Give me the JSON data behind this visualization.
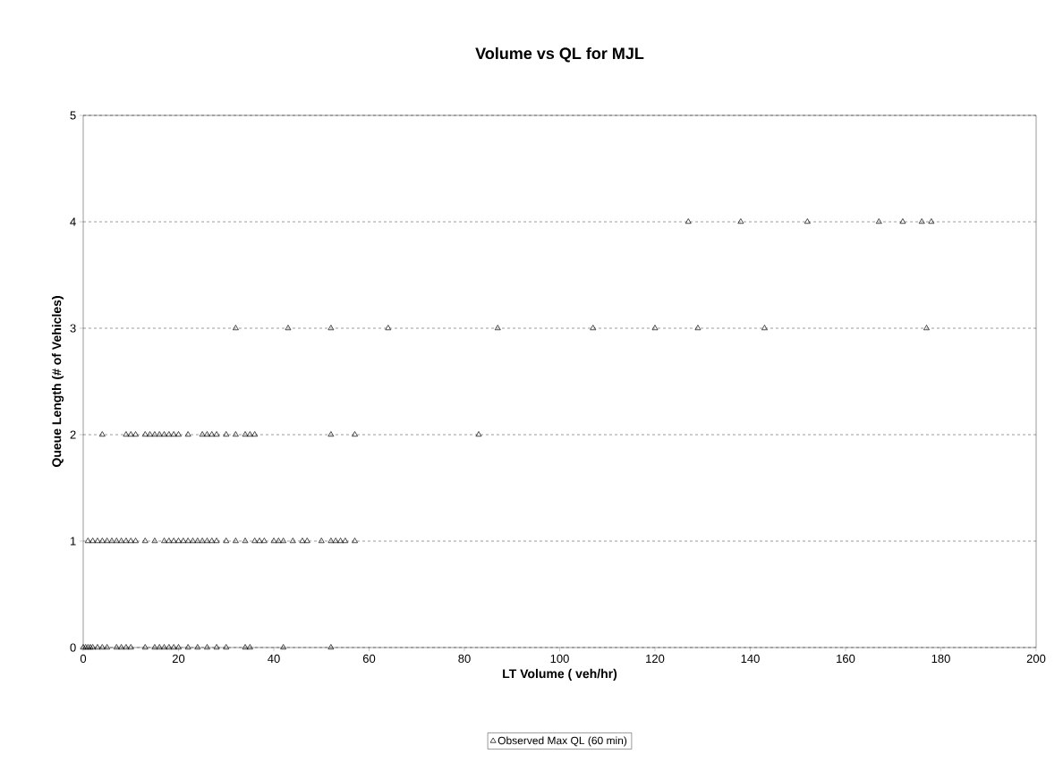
{
  "chart_data": {
    "type": "scatter",
    "title": "Volume vs QL for MJL",
    "xlabel": "LT Volume ( veh/hr)",
    "ylabel": "Queue Length (# of Vehicles)",
    "xlim": [
      0,
      200
    ],
    "xticks": [
      0,
      20,
      40,
      60,
      80,
      100,
      120,
      140,
      160,
      180,
      200
    ],
    "ylim": [
      0,
      5
    ],
    "yticks": [
      0,
      1,
      2,
      3,
      4,
      5
    ],
    "grid": "y",
    "legend": "bottom",
    "marker": "triangle",
    "series": [
      {
        "name": "Observed Max QL (60 min)",
        "color": "#000000",
        "x": [
          0,
          0.5,
          1,
          1.5,
          2,
          3,
          4,
          5,
          7,
          8,
          9,
          10,
          13,
          15,
          16,
          17,
          18,
          19,
          20,
          22,
          24,
          26,
          28,
          30,
          34,
          35,
          42,
          52,
          1,
          2,
          3,
          4,
          5,
          6,
          7,
          8,
          9,
          10,
          11,
          13,
          15,
          17,
          18,
          19,
          20,
          21,
          22,
          23,
          24,
          25,
          26,
          27,
          28,
          30,
          32,
          34,
          36,
          37,
          38,
          40,
          41,
          42,
          44,
          46,
          47,
          50,
          52,
          53,
          54,
          55,
          57,
          4,
          9,
          10,
          11,
          13,
          14,
          15,
          16,
          17,
          18,
          19,
          20,
          22,
          25,
          26,
          27,
          28,
          30,
          32,
          34,
          35,
          36,
          52,
          57,
          83,
          32,
          43,
          52,
          64,
          87,
          107,
          120,
          129,
          143,
          177,
          127,
          138,
          152,
          167,
          172,
          176,
          178
        ],
        "values": [
          0,
          0,
          0,
          0,
          0,
          0,
          0,
          0,
          0,
          0,
          0,
          0,
          0,
          0,
          0,
          0,
          0,
          0,
          0,
          0,
          0,
          0,
          0,
          0,
          0,
          0,
          0,
          0,
          1,
          1,
          1,
          1,
          1,
          1,
          1,
          1,
          1,
          1,
          1,
          1,
          1,
          1,
          1,
          1,
          1,
          1,
          1,
          1,
          1,
          1,
          1,
          1,
          1,
          1,
          1,
          1,
          1,
          1,
          1,
          1,
          1,
          1,
          1,
          1,
          1,
          1,
          1,
          1,
          1,
          1,
          1,
          2,
          2,
          2,
          2,
          2,
          2,
          2,
          2,
          2,
          2,
          2,
          2,
          2,
          2,
          2,
          2,
          2,
          2,
          2,
          2,
          2,
          2,
          2,
          2,
          2,
          3,
          3,
          3,
          3,
          3,
          3,
          3,
          3,
          3,
          3,
          4,
          4,
          4,
          4,
          4,
          4,
          4
        ]
      }
    ]
  }
}
